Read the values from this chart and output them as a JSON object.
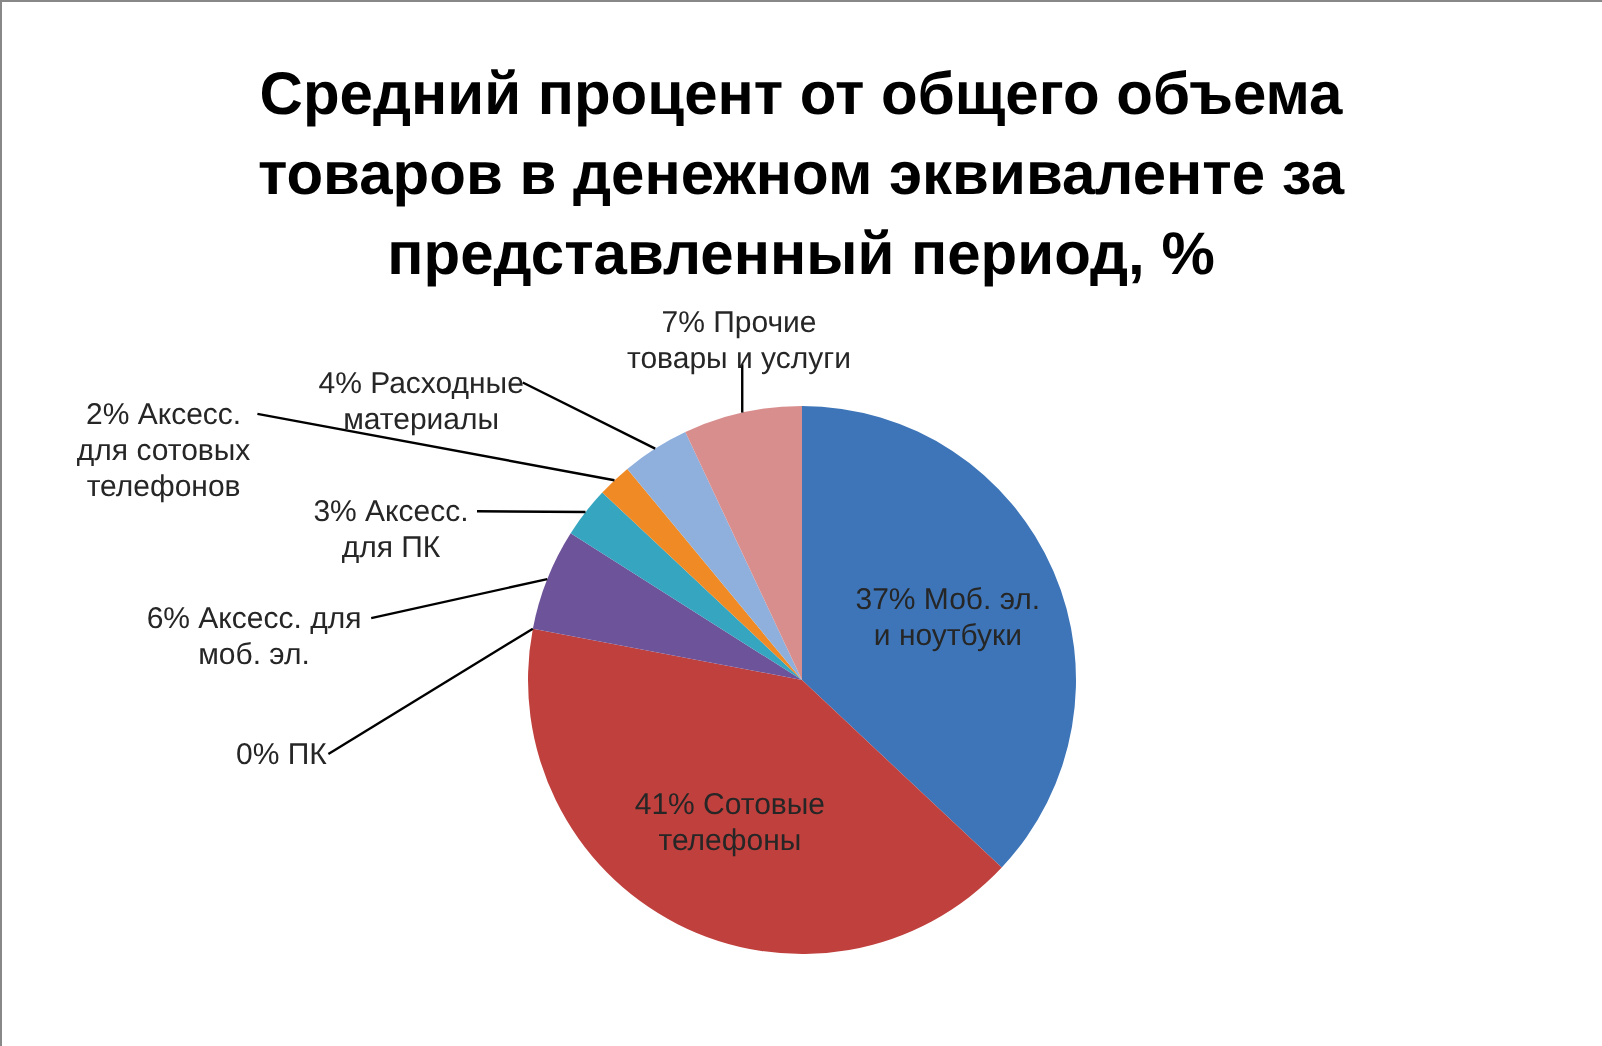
{
  "chart_data": {
    "type": "pie",
    "title": "Средний процент от общего объема товаров в денежном эквиваленте за представленный период, %",
    "categories": [
      "Моб. эл. и ноутбуки",
      "Сотовые телефоны",
      "ПК",
      "Аксесс. для моб. эл.",
      "Аксесс. для ПК",
      "Аксесс. для сотовых телефонов",
      "Расходные материалы",
      "Прочие товары и услуги"
    ],
    "values": [
      37,
      41,
      0,
      6,
      3,
      2,
      4,
      7
    ],
    "value_labels": [
      "37%",
      "41%",
      "0%",
      "6%",
      "3%",
      "2%",
      "4%",
      "7%"
    ],
    "colors": [
      "#3d75b8",
      "#c0403d",
      "#9bbb59",
      "#6d539a",
      "#35a5c0",
      "#f08a25",
      "#8fb0dd",
      "#d98e8e"
    ]
  }
}
